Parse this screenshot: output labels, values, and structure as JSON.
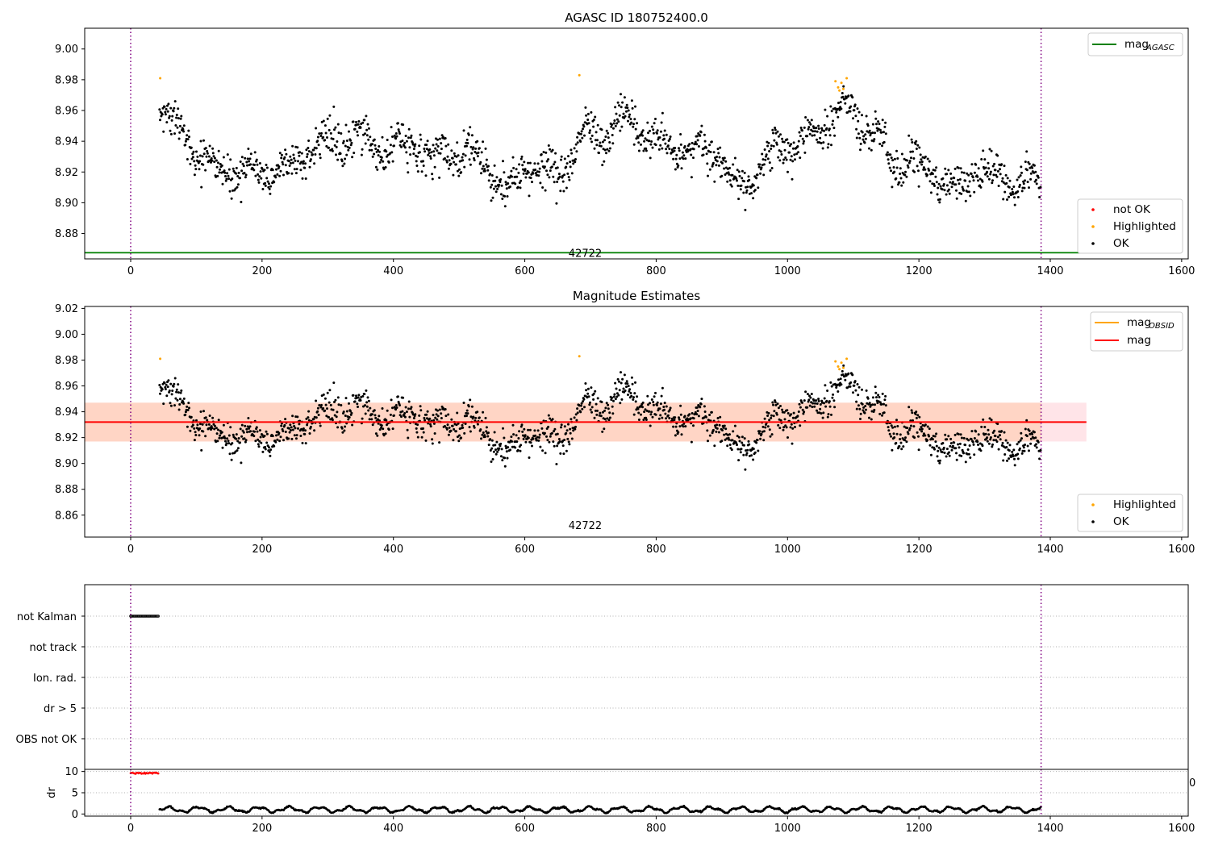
{
  "chart_data": [
    {
      "type": "scatter",
      "title": "AGASC ID 180752400.0",
      "xlabel": "",
      "ylabel": "",
      "xlim": [
        -70,
        1610
      ],
      "ylim": [
        8.8635,
        9.0135
      ],
      "xticks": [
        0,
        200,
        400,
        600,
        800,
        1000,
        1200,
        1400,
        1600
      ],
      "yticks": [
        8.88,
        8.9,
        8.92,
        8.94,
        8.96,
        8.98,
        9.0
      ],
      "vlines": [
        0,
        1386
      ],
      "obsid_label": "42722",
      "mag_agasc": 8.8675,
      "legend_lines": [
        {
          "label": "mag",
          "subscript": "AGASC",
          "color": "#008000"
        }
      ],
      "legend_points": [
        {
          "label": "not OK",
          "color": "#ff0000"
        },
        {
          "label": "Highlighted",
          "color": "#ffa500"
        },
        {
          "label": "OK",
          "color": "#000000"
        }
      ],
      "highlighted_points": [
        [
          45,
          8.981
        ],
        [
          683,
          8.983
        ],
        [
          1073,
          8.979
        ],
        [
          1077,
          8.975
        ],
        [
          1079,
          8.973
        ],
        [
          1082,
          8.978
        ],
        [
          1085,
          8.974
        ],
        [
          1090,
          8.981
        ]
      ]
    },
    {
      "type": "scatter",
      "title": "Magnitude Estimates",
      "xlabel": "",
      "ylabel": "",
      "xlim": [
        -70,
        1610
      ],
      "ylim": [
        8.843,
        9.0215
      ],
      "xticks": [
        0,
        200,
        400,
        600,
        800,
        1000,
        1200,
        1400,
        1600
      ],
      "yticks": [
        8.86,
        8.88,
        8.9,
        8.92,
        8.94,
        8.96,
        8.98,
        9.0,
        9.02
      ],
      "vlines": [
        0,
        1386
      ],
      "obsid_label": "42722",
      "mag": 8.932,
      "mag_band": [
        8.917,
        8.947
      ],
      "legend_lines": [
        {
          "label": "mag",
          "subscript": "OBSID",
          "color": "#ffa500"
        },
        {
          "label": "mag",
          "subscript": "",
          "color": "#ff0000"
        }
      ],
      "legend_points": [
        {
          "label": "Highlighted",
          "color": "#ffa500"
        },
        {
          "label": "OK",
          "color": "#000000"
        }
      ],
      "highlighted_points": [
        [
          45,
          8.981
        ],
        [
          683,
          8.983
        ],
        [
          1073,
          8.979
        ],
        [
          1077,
          8.975
        ],
        [
          1079,
          8.973
        ],
        [
          1082,
          8.978
        ],
        [
          1085,
          8.974
        ],
        [
          1090,
          8.981
        ]
      ]
    },
    {
      "type": "scatter",
      "title": "",
      "xlabel": "",
      "ylabel": "",
      "xlim": [
        -70,
        1610
      ],
      "categories": [
        "not Kalman",
        "not track",
        "Ion. rad.",
        "dr > 5",
        "OBS not OK"
      ],
      "vlines": [
        0,
        1386
      ],
      "not_kalman_range": [
        0,
        43
      ]
    },
    {
      "type": "scatter",
      "title": "",
      "xlabel": "",
      "ylabel": "dr",
      "xlim": [
        -70,
        1610
      ],
      "ylim": [
        -0.5,
        10.5
      ],
      "xticks": [
        0,
        200,
        400,
        600,
        800,
        1000,
        1200,
        1400,
        1600
      ],
      "yticks": [
        0,
        5,
        10
      ],
      "vlines": [
        0,
        1386
      ],
      "clipped_tick_text": "0",
      "high_dr_range": [
        0,
        43
      ],
      "high_dr_value": 9.6
    }
  ],
  "colors": {
    "ok": "#000000",
    "highlighted": "#ffa500",
    "not_ok": "#ff0000",
    "agasc_line": "#008000",
    "mag_line": "#ff0000",
    "vline": "#800080",
    "band_fill": "#ffd5c5",
    "band_outer": "#ffe4e8"
  }
}
